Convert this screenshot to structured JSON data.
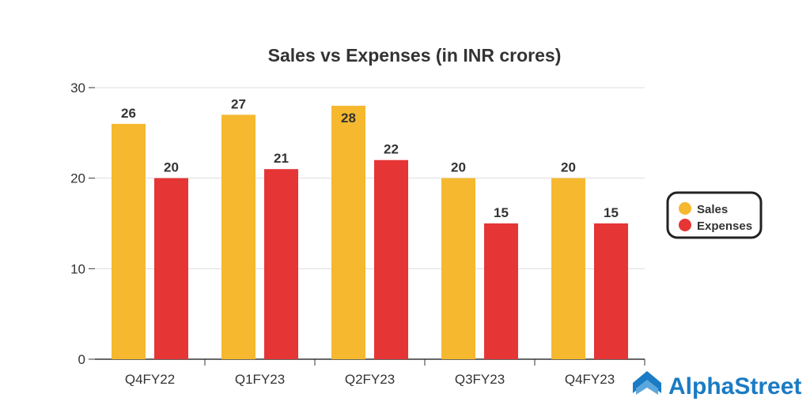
{
  "chart_data": {
    "type": "bar",
    "title": "Sales vs Expenses (in INR crores)",
    "categories": [
      "Q4FY22",
      "Q1FY23",
      "Q2FY23",
      "Q3FY23",
      "Q4FY23"
    ],
    "series": [
      {
        "name": "Sales",
        "values": [
          26,
          27,
          28,
          20,
          20
        ],
        "color": "#F5B82E"
      },
      {
        "name": "Expenses",
        "values": [
          20,
          21,
          22,
          15,
          15
        ],
        "color": "#E53535"
      }
    ],
    "yticks": [
      "0",
      "10",
      "20",
      "30"
    ],
    "ylim": [
      0,
      30
    ],
    "xlabel": "",
    "ylabel": "",
    "grid": true,
    "legend_position": "right"
  },
  "brand": {
    "name": "AlphaStreet",
    "color": "#1B7BC4"
  }
}
